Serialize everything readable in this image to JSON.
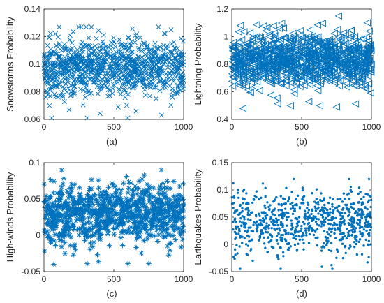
{
  "chart_data": [
    {
      "type": "scatter",
      "marker": "x",
      "caption": "(a)",
      "ylabel": "Snowstorms Probability",
      "xlim": [
        0,
        1000
      ],
      "ylim": [
        0.06,
        0.14
      ],
      "xticks": [
        "0",
        "500",
        "1000"
      ],
      "yticks": [
        "0.06",
        "0.08",
        "0.1",
        "0.12",
        "0.14"
      ],
      "color": "#0072BD",
      "n_points": 1000,
      "center": 0.098,
      "spread": 0.01,
      "range_observed": [
        0.06,
        0.127
      ],
      "highlighted_points": [
        [
          55,
          0.061
        ],
        [
          310,
          0.061
        ],
        [
          600,
          0.061
        ],
        [
          820,
          0.127
        ],
        [
          40,
          0.07
        ],
        [
          180,
          0.067
        ],
        [
          660,
          0.066
        ]
      ]
    },
    {
      "type": "scatter",
      "marker": "triangle-left",
      "caption": "(b)",
      "ylabel": "Lightning Probability",
      "xlim": [
        0,
        1000
      ],
      "ylim": [
        0.4,
        1.2
      ],
      "xticks": [
        "0",
        "500",
        "1000"
      ],
      "yticks": [
        "0.4",
        "0.6",
        "0.8",
        "1",
        "1.2"
      ],
      "color": "#0072BD",
      "n_points": 1000,
      "center": 0.83,
      "spread": 0.1,
      "range_observed": [
        0.48,
        1.15
      ],
      "highlighted_points": [
        [
          80,
          0.48
        ],
        [
          420,
          0.5
        ],
        [
          630,
          0.5
        ],
        [
          750,
          0.49
        ],
        [
          765,
          1.15
        ],
        [
          560,
          1.05
        ],
        [
          340,
          1.06
        ]
      ]
    },
    {
      "type": "scatter",
      "marker": "asterisk",
      "caption": "(c)",
      "ylabel": "High-winds Probability",
      "xlim": [
        0,
        1000
      ],
      "ylim": [
        -0.05,
        0.1
      ],
      "xticks": [
        "0",
        "500",
        "1000"
      ],
      "yticks": [
        "-0.05",
        "0",
        "0.05",
        "0.1"
      ],
      "color": "#0072BD",
      "n_points": 1000,
      "center": 0.03,
      "spread": 0.02,
      "range_observed": [
        -0.04,
        0.09
      ],
      "highlighted_points": [
        [
          70,
          -0.04
        ],
        [
          310,
          -0.039
        ],
        [
          600,
          -0.039
        ],
        [
          750,
          -0.039
        ],
        [
          840,
          0.09
        ],
        [
          150,
          -0.025
        ]
      ]
    },
    {
      "type": "scatter",
      "marker": "dot",
      "caption": "(d)",
      "ylabel": "Earthquakes Probability",
      "xlim": [
        0,
        1000
      ],
      "ylim": [
        -0.05,
        0.15
      ],
      "xticks": [
        "0",
        "500",
        "1000"
      ],
      "yticks": [
        "-0.05",
        "0",
        "0.05",
        "0.1",
        "0.15"
      ],
      "color": "#0072BD",
      "n_points": 800,
      "center": 0.04,
      "spread": 0.027,
      "range_observed": [
        -0.045,
        0.12
      ],
      "highlighted_points": [
        [
          60,
          -0.045
        ],
        [
          350,
          -0.045
        ],
        [
          720,
          -0.045
        ],
        [
          840,
          0.12
        ],
        [
          150,
          -0.03
        ]
      ]
    }
  ]
}
